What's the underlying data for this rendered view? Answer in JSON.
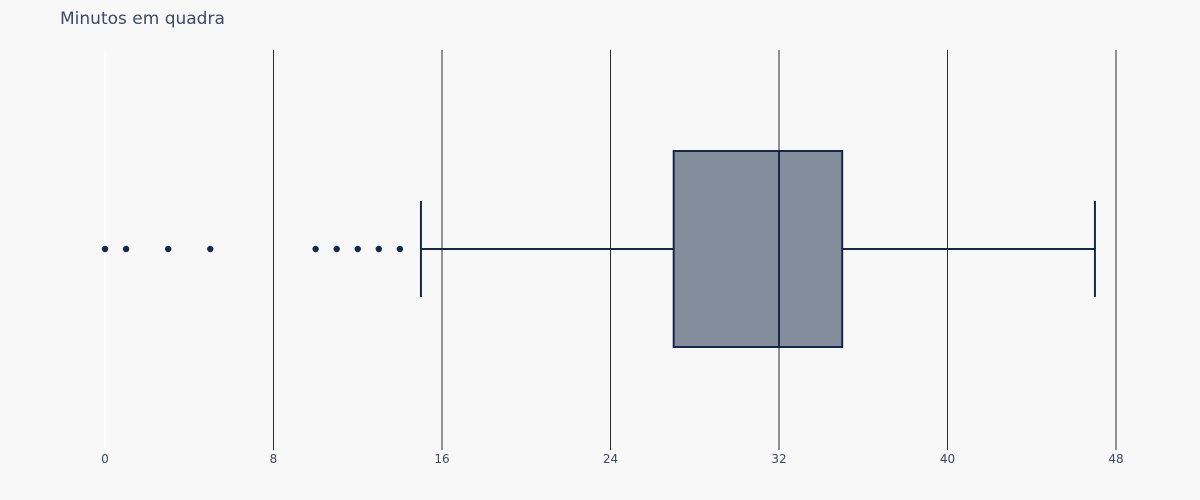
{
  "chart_data": {
    "type": "box",
    "title": "Minutos em quadra",
    "xlabel": "",
    "ylabel": "",
    "xlim": [
      0,
      48
    ],
    "xticks": [
      0,
      8,
      16,
      24,
      32,
      40,
      48
    ],
    "grid": true,
    "orientation": "horizontal",
    "box": {
      "lower_fence": 15,
      "q1": 27,
      "median": 32,
      "q3": 35,
      "upper_fence": 47
    },
    "outliers": [
      0,
      1,
      3,
      5,
      10,
      11,
      12,
      13,
      14
    ],
    "colors": {
      "box_fill": "#848d9b",
      "box_line": "#15284a",
      "point": "#15284a",
      "grid": "#2a2a2a",
      "text": "#3c4a66"
    }
  }
}
